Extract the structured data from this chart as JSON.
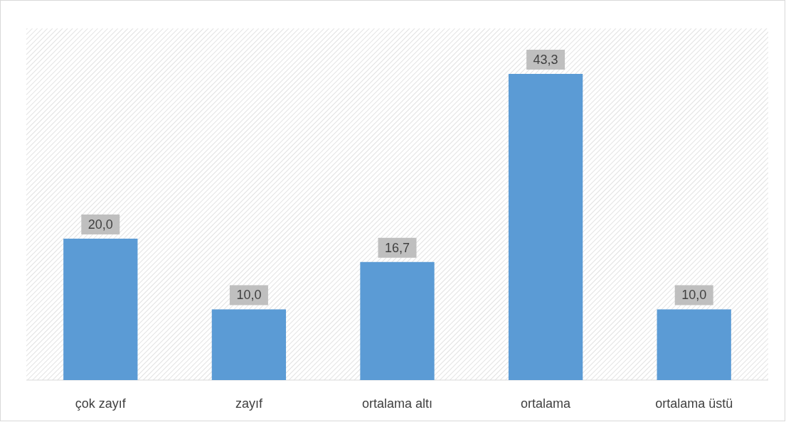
{
  "chart_data": {
    "type": "bar",
    "categories": [
      "çok zayıf",
      "zayıf",
      "ortalama altı",
      "ortalama",
      "ortalama üstü"
    ],
    "values": [
      20.0,
      10.0,
      16.7,
      43.3,
      10.0
    ],
    "value_labels": [
      "20,0",
      "10,0",
      "16,7",
      "43,3",
      "10,0"
    ],
    "color": "#5b9bd5"
  }
}
